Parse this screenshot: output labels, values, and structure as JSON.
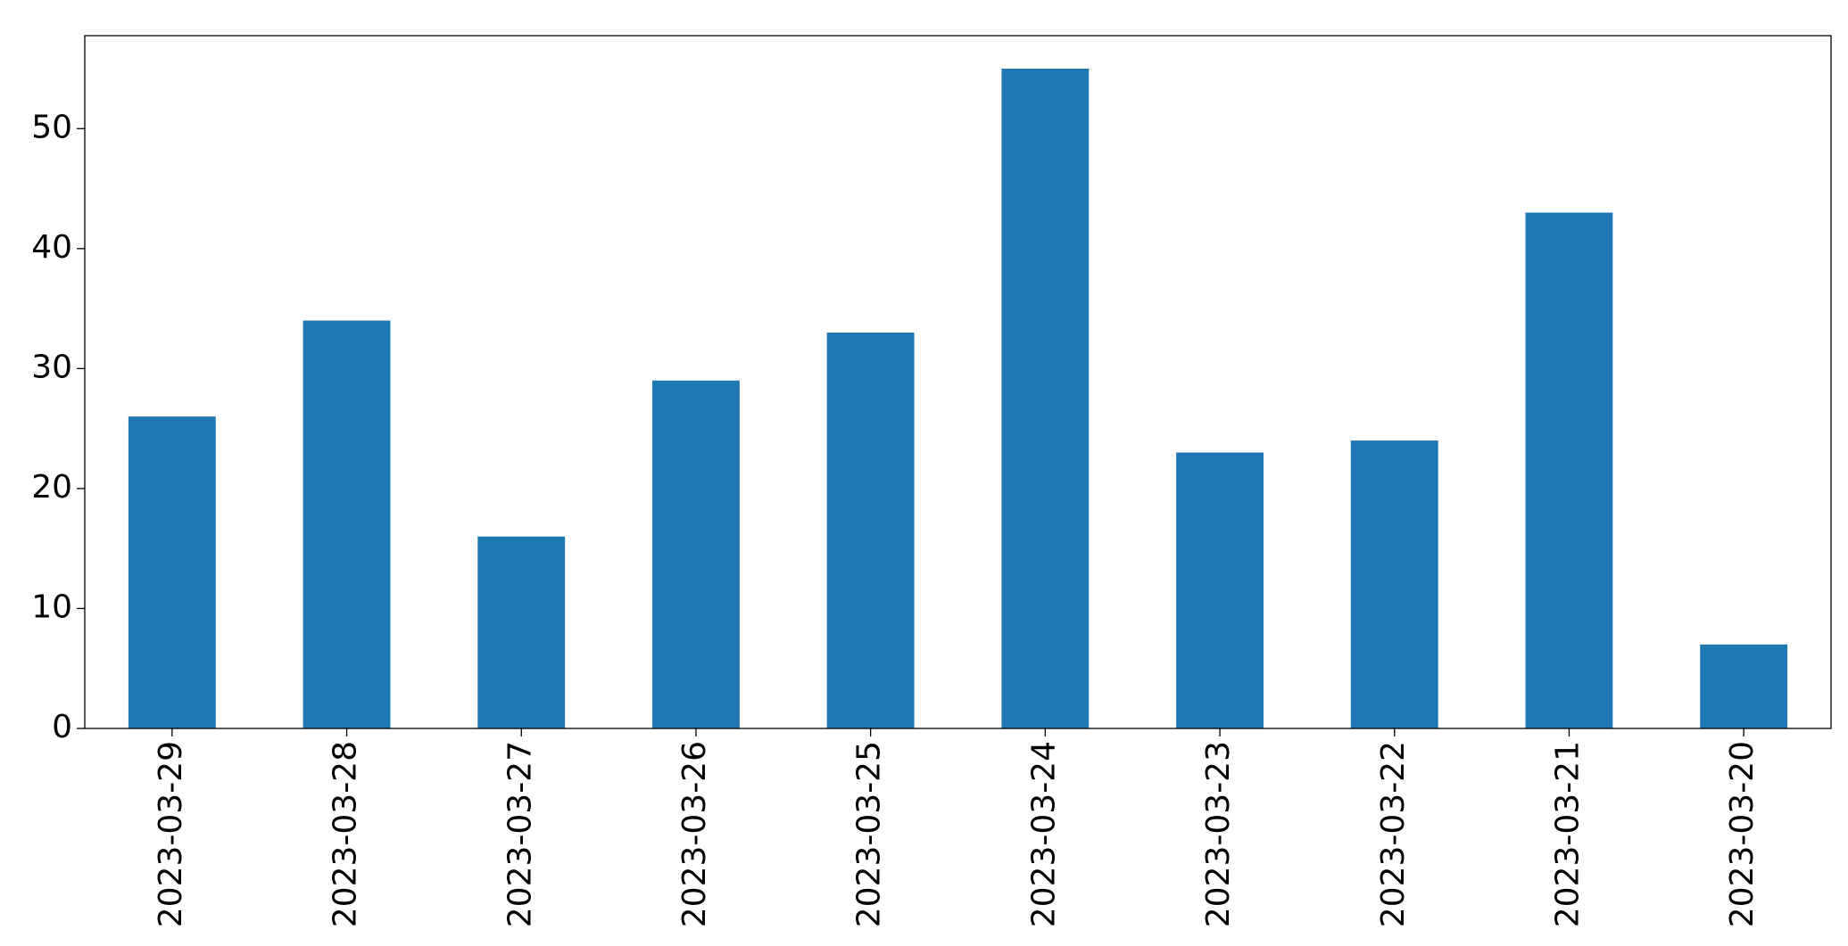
{
  "chart_data": {
    "type": "bar",
    "categories": [
      "2023-03-29",
      "2023-03-28",
      "2023-03-27",
      "2023-03-26",
      "2023-03-25",
      "2023-03-24",
      "2023-03-23",
      "2023-03-22",
      "2023-03-21",
      "2023-03-20"
    ],
    "values": [
      26,
      34,
      16,
      29,
      33,
      55,
      23,
      24,
      43,
      7
    ],
    "color": "#1f77b4",
    "ylim": [
      0,
      57.75
    ],
    "yticks": [
      0,
      10,
      20,
      30,
      40,
      50
    ],
    "grid": false
  }
}
